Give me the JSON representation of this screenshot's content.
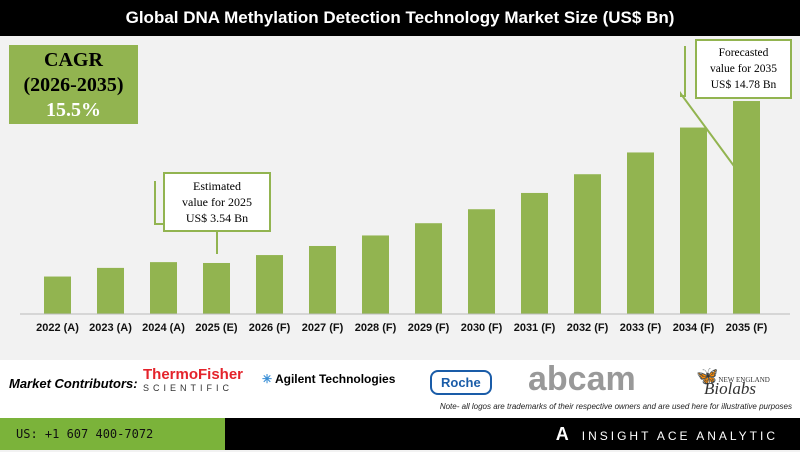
{
  "chart_data": {
    "type": "bar",
    "title": "Global DNA Methylation Detection Technology Market Size (US$ Bn)",
    "categories": [
      "2022 (A)",
      "2023 (A)",
      "2024 (A)",
      "2025 (E)",
      "2026 (F)",
      "2027 (F)",
      "2028 (F)",
      "2029 (F)",
      "2030 (F)",
      "2031 (F)",
      "2032 (F)",
      "2033 (F)",
      "2034 (F)",
      "2035 (F)"
    ],
    "values": [
      2.6,
      3.2,
      3.6,
      3.54,
      4.09,
      4.72,
      5.45,
      6.3,
      7.27,
      8.4,
      9.7,
      11.21,
      12.94,
      14.78
    ],
    "bar_color": "#92b450",
    "grid": false,
    "annotations": {
      "cagr": {
        "label": "CAGR",
        "period": "(2026-2035)",
        "value": "15.5%"
      },
      "estimated": [
        "Estimated",
        "value for 2025",
        "US$ 3.54 Bn"
      ],
      "forecasted": [
        "Forecasted",
        "value for 2035",
        "US$ 14.78 Bn"
      ]
    }
  },
  "contributors": {
    "label": "Market Contributors:",
    "logos": [
      "ThermoFisher SCIENTIFIC",
      "Agilent Technologies",
      "Roche",
      "abcam",
      "NEW ENGLAND Biolabs"
    ],
    "note": "Note- all logos are trademarks of their respective owners and are used here for illustrative purposes"
  },
  "footer": {
    "phone": "US: +1 607 400-7072",
    "brand": "INSIGHT ACE ANALYTIC"
  }
}
